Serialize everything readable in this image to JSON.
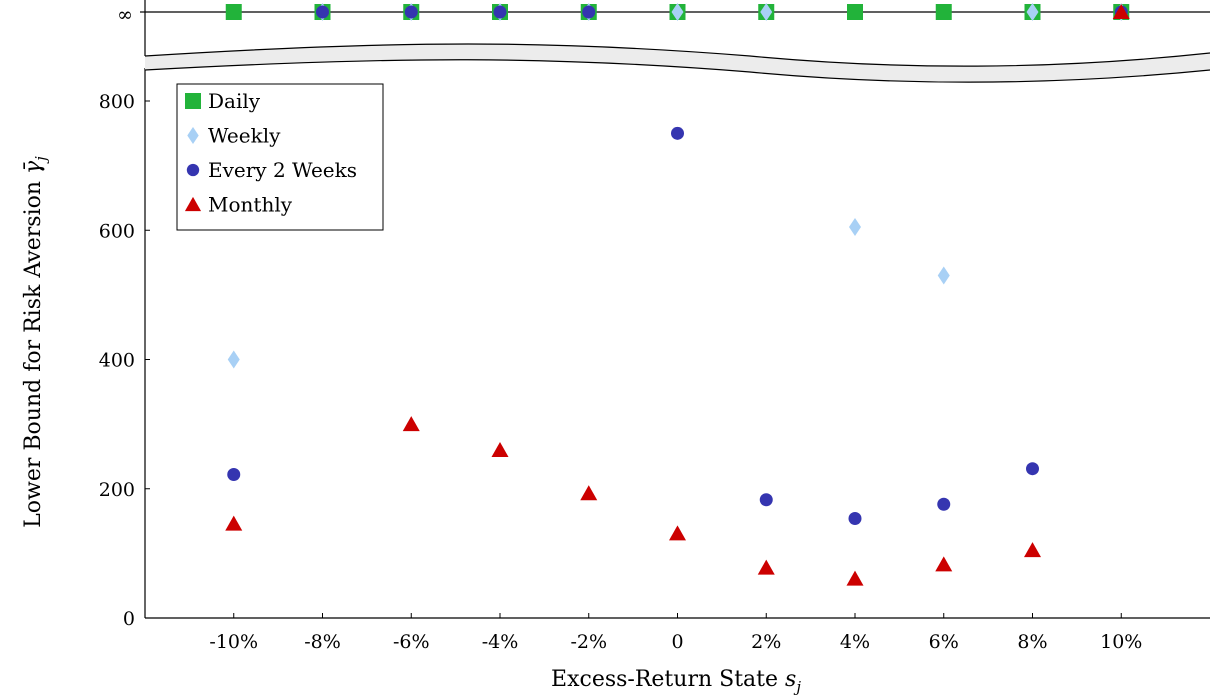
{
  "chart_data": {
    "type": "scatter",
    "title": "",
    "xlabel": "Excess-Return State s",
    "xlabel_subscript": "j",
    "ylabel": "Lower Bound for Risk Aversion γ",
    "ylabel_subscript": "j",
    "categories": [
      "-10%",
      "-8%",
      "-6%",
      "-4%",
      "-2%",
      "0",
      "2%",
      "4%",
      "6%",
      "8%",
      "10%"
    ],
    "x_values": [
      -10,
      -8,
      -6,
      -4,
      -2,
      0,
      2,
      4,
      6,
      8,
      10
    ],
    "xlim": [
      -12,
      12
    ],
    "ylim": [
      0,
      900
    ],
    "yticks": [
      0,
      200,
      400,
      600,
      800
    ],
    "infinity_label": "∞",
    "axis_break": true,
    "grid": false,
    "legend_position": "top-left",
    "series": [
      {
        "name": "Daily",
        "marker": "square",
        "color": "#22b33a",
        "values": [
          "inf",
          "inf",
          "inf",
          "inf",
          "inf",
          "inf",
          "inf",
          "inf",
          "inf",
          "inf",
          "inf"
        ]
      },
      {
        "name": "Weekly",
        "marker": "diamond",
        "color": "#a8d0f5",
        "values": [
          400,
          "inf",
          "inf",
          "inf",
          "inf",
          "inf",
          "inf",
          605,
          530,
          "inf",
          "inf"
        ]
      },
      {
        "name": "Every 2 Weeks",
        "marker": "circle",
        "color": "#3535b0",
        "values": [
          222,
          "inf",
          "inf",
          "inf",
          "inf",
          750,
          183,
          154,
          176,
          231,
          "inf"
        ]
      },
      {
        "name": "Monthly",
        "marker": "triangle",
        "color": "#cc0000",
        "values": [
          146,
          null,
          300,
          260,
          193,
          131,
          78,
          61,
          83,
          105,
          "inf"
        ]
      }
    ]
  }
}
